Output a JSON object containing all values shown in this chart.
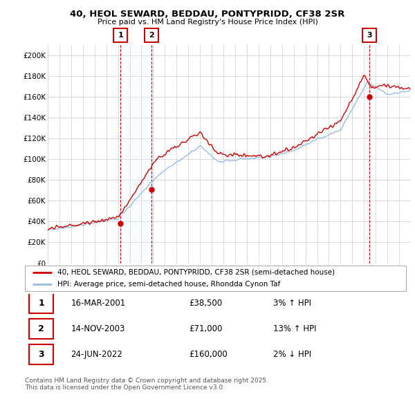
{
  "title": "40, HEOL SEWARD, BEDDAU, PONTYPRIDD, CF38 2SR",
  "subtitle": "Price paid vs. HM Land Registry's House Price Index (HPI)",
  "ylim": [
    0,
    210000
  ],
  "yticks": [
    0,
    20000,
    40000,
    60000,
    80000,
    100000,
    120000,
    140000,
    160000,
    180000,
    200000
  ],
  "ytick_labels": [
    "£0",
    "£20K",
    "£40K",
    "£60K",
    "£80K",
    "£100K",
    "£120K",
    "£140K",
    "£160K",
    "£180K",
    "£200K"
  ],
  "sale1_yr": 2001.21,
  "sale2_yr": 2003.87,
  "sale3_yr": 2022.46,
  "sale1_price": 38500,
  "sale2_price": 71000,
  "sale3_price": 160000,
  "hpi_line_color": "#99BBDD",
  "price_line_color": "#CC0000",
  "sale_marker_color": "#CC0000",
  "legend_line1": "40, HEOL SEWARD, BEDDAU, PONTYPRIDD, CF38 2SR (semi-detached house)",
  "legend_line2": "HPI: Average price, semi-detached house, Rhondda Cynon Taf",
  "table_rows": [
    {
      "num": "1",
      "date": "16-MAR-2001",
      "price": "£38,500",
      "change": "3% ↑ HPI"
    },
    {
      "num": "2",
      "date": "14-NOV-2003",
      "price": "£71,000",
      "change": "13% ↑ HPI"
    },
    {
      "num": "3",
      "date": "24-JUN-2022",
      "price": "£160,000",
      "change": "2% ↓ HPI"
    }
  ],
  "footer": "Contains HM Land Registry data © Crown copyright and database right 2025.\nThis data is licensed under the Open Government Licence v3.0.",
  "bg_color": "#ffffff",
  "grid_color": "#cccccc",
  "shade_color": "#ddeeff"
}
